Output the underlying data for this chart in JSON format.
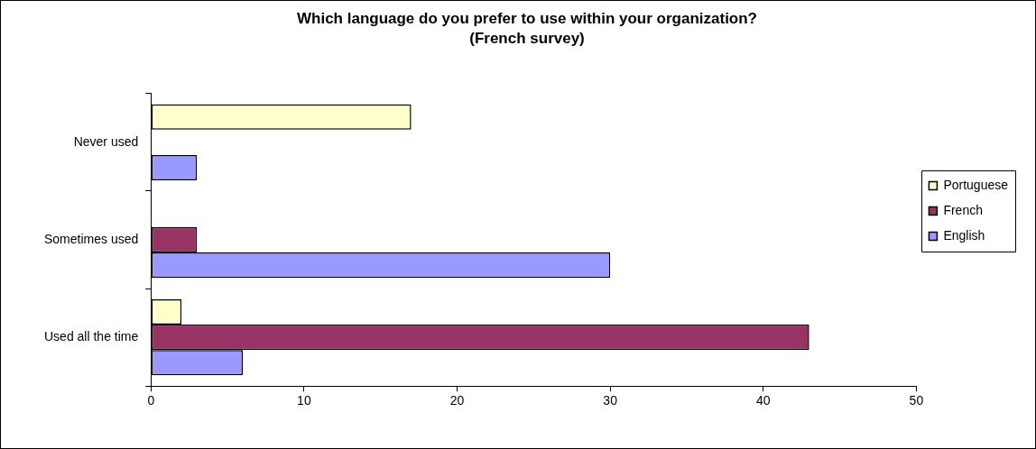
{
  "chart_data": {
    "type": "bar",
    "orientation": "horizontal",
    "title": "Which language do you prefer to use within your organization?",
    "subtitle": "(French survey)",
    "categories": [
      "Never used",
      "Sometimes used",
      "Used all the time"
    ],
    "series": [
      {
        "name": "Portuguese",
        "color": "#ffffcc",
        "values": [
          17,
          0,
          2
        ]
      },
      {
        "name": "French",
        "color": "#993366",
        "values": [
          0,
          3,
          43
        ]
      },
      {
        "name": "English",
        "color": "#9999ff",
        "values": [
          3,
          30,
          6
        ]
      }
    ],
    "xlim": [
      0,
      50
    ],
    "xticks": [
      0,
      10,
      20,
      30,
      40,
      50
    ],
    "grid": false,
    "legend": "right"
  }
}
